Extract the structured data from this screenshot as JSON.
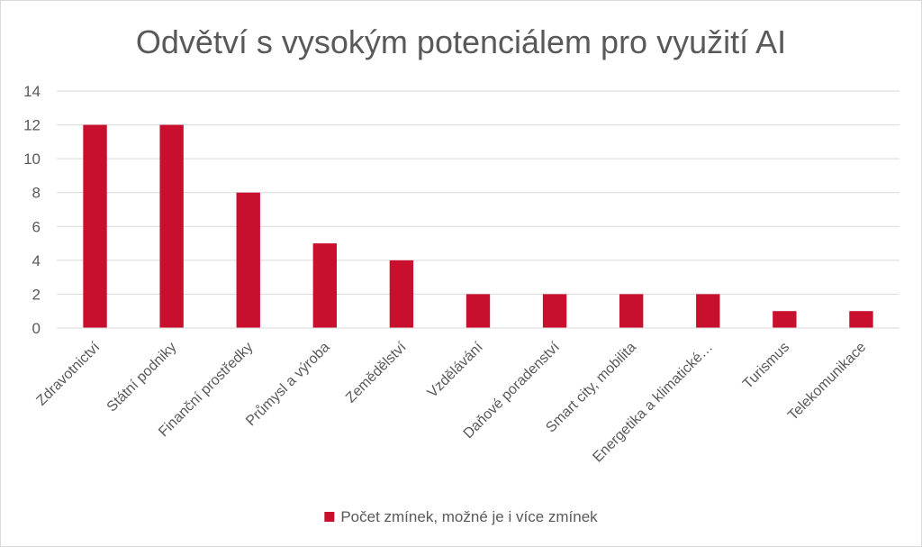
{
  "chart_data": {
    "type": "bar",
    "title": "Odvětví s vysokým potenciálem pro využití AI",
    "xlabel": "",
    "ylabel": "",
    "categories": [
      "Zdravotnictví",
      "Státní podniky",
      "Finanční prostředky",
      "Průmysl a výroba",
      "Zemědělství",
      "Vzdělávání",
      "Daňové poradenství",
      "Smart city, mobilita",
      "Energetika a klimatické…",
      "Turismus",
      "Telekomunikace"
    ],
    "series": [
      {
        "name": "Počet zmínek, možné je i více zmínek",
        "values": [
          12,
          12,
          8,
          5,
          4,
          2,
          2,
          2,
          2,
          1,
          1
        ],
        "color": "#c8102e"
      }
    ],
    "ylim": [
      0,
      14
    ],
    "yticks": [
      "0",
      "2",
      "4",
      "6",
      "8",
      "10",
      "12",
      "14"
    ],
    "grid": true,
    "legend": "bottom"
  }
}
